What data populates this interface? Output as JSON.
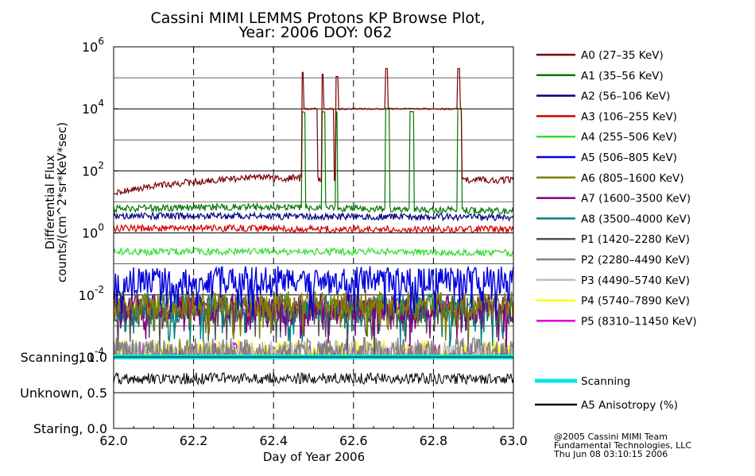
{
  "chart_data": [
    {
      "type": "line",
      "title": "Cassini MIMI LEMMS Protons KP Browse Plot,",
      "subtitle": "Year: 2006 DOY: 062",
      "ylabel": "Differential Flux",
      "ylabel2": "counts/(cm^2*sr*KeV*sec)",
      "yscale": "log",
      "ylim": [
        0.0001,
        1000000
      ],
      "xlim": [
        62.0,
        63.0
      ],
      "y_ticks": [
        {
          "base": "10",
          "exp": "6"
        },
        {
          "base": "10",
          "exp": "4"
        },
        {
          "base": "10",
          "exp": "2"
        },
        {
          "base": "10",
          "exp": "0"
        },
        {
          "base": "10",
          "exp": "-2"
        },
        {
          "base": "10",
          "exp": "-4"
        }
      ],
      "grid": true,
      "legend_position": "right",
      "series": [
        {
          "name": "A0 (27–35 KeV)",
          "color": "#7a0000",
          "baseline": [
            20,
            60,
            55,
            50
          ],
          "peaks": [
            [
              62.47,
              62.51,
              10000,
              150000
            ],
            [
              62.52,
              62.55,
              10000,
              130000
            ],
            [
              62.555,
              62.57,
              10000,
              110000
            ],
            [
              62.57,
              62.68,
              10000,
              0
            ],
            [
              62.68,
              62.74,
              10000,
              200000
            ],
            [
              62.74,
              62.86,
              10000,
              0
            ],
            [
              62.86,
              62.87,
              10000,
              200000
            ]
          ]
        },
        {
          "name": "A1 (35–56 KeV)",
          "color": "#007800",
          "baseline": [
            6,
            7,
            6,
            5
          ],
          "peaks": [
            [
              62.47,
              62.48,
              8000,
              0
            ],
            [
              62.52,
              62.53,
              8000,
              0
            ],
            [
              62.555,
              62.56,
              8000,
              0
            ],
            [
              62.68,
              62.69,
              10000,
              0
            ],
            [
              62.74,
              62.75,
              8000,
              0
            ],
            [
              62.86,
              62.87,
              10000,
              0
            ]
          ]
        },
        {
          "name": "A2 (56–106 KeV)",
          "color": "#000080",
          "baseline": [
            3.5,
            3.5,
            3.3,
            3.2
          ]
        },
        {
          "name": "A3 (106–255 KeV)",
          "color": "#d40000",
          "baseline": [
            1.4,
            1.4,
            1.3,
            1.3
          ]
        },
        {
          "name": "A4 (255–506 KeV)",
          "color": "#33dd33",
          "baseline": [
            0.25,
            0.25,
            0.25,
            0.22
          ]
        },
        {
          "name": "A5 (506–805 KeV)",
          "color": "#0000dd",
          "baseline": [
            0.03,
            0.03,
            0.03,
            0.03
          ]
        },
        {
          "name": "A6 (805–1600 KeV)",
          "color": "#808000",
          "baseline": [
            0.005,
            0.005,
            0.005,
            0.005
          ]
        },
        {
          "name": "A7 (1600–3500 KeV)",
          "color": "#800080",
          "baseline": [
            0.004,
            0.004,
            0.004,
            0.004
          ]
        },
        {
          "name": "A8 (3500–4000 KeV)",
          "color": "#008080",
          "baseline": [
            0.004,
            0.004,
            0.004,
            0.004
          ]
        },
        {
          "name": "P1 (1420–2280 KeV)",
          "color": "#505050",
          "baseline": [
            0.003,
            0.003,
            0.003,
            0.003
          ]
        },
        {
          "name": "P2 (2280–4490 KeV)",
          "color": "#808080",
          "baseline": [
            0.00015,
            0.00015,
            0.00015,
            0.00015
          ]
        },
        {
          "name": "P3 (4490–5740 KeV)",
          "color": "#bdbdbd",
          "baseline": [
            0.00012,
            0.00012,
            0.00012,
            0.00012
          ]
        },
        {
          "name": "P4 (5740–7890 KeV)",
          "color": "#ffff00",
          "baseline": [
            0.00013,
            0.00013,
            0.00013,
            0.00013
          ]
        },
        {
          "name": "P5 (8310–11450 KeV)",
          "color": "#dd00dd",
          "baseline": [
            0.0001,
            0.0001,
            0.0001,
            0.0001
          ]
        }
      ]
    },
    {
      "type": "line",
      "xlabel": "Day of Year 2006",
      "xlim": [
        62.0,
        63.0
      ],
      "ylim": [
        0.0,
        1.0
      ],
      "x_ticks": [
        "62.0",
        "62.2",
        "62.4",
        "62.6",
        "62.8",
        "63.0"
      ],
      "y_ticks": [
        {
          "label": "Scanning, 1.0",
          "value": 1.0
        },
        {
          "label": "Unknown, 0.5",
          "value": 0.5
        },
        {
          "label": "Staring, 0.0",
          "value": 0.0
        }
      ],
      "grid": true,
      "legend_position": "right",
      "series": [
        {
          "name": "Scanning",
          "color": "#00e5e5",
          "value": 1.0
        },
        {
          "name": "A5 Anisotropy (%)",
          "color": "#000000",
          "value": 0.7,
          "spread": 0.08
        }
      ]
    }
  ],
  "footer": {
    "line1": "@2005 Cassini MIMI Team",
    "line2": "Fundamental Technologies, LLC",
    "line3": "Thu Jun 08 03:10:15 2006"
  }
}
